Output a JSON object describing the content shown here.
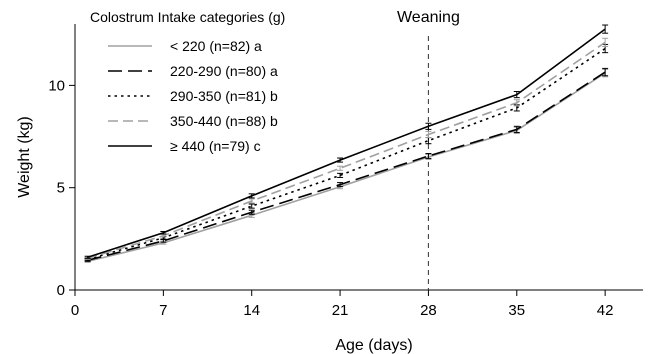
{
  "chart_data": {
    "type": "line",
    "title": "",
    "xlabel": "Age (days)",
    "ylabel": "Weight (kg)",
    "xlim": [
      0,
      45
    ],
    "ylim": [
      0,
      13
    ],
    "xticks": [
      0,
      7,
      14,
      21,
      28,
      35,
      42
    ],
    "yticks": [
      0,
      5,
      10
    ],
    "x": [
      1,
      7,
      14,
      21,
      28,
      35,
      42
    ],
    "grid": false,
    "legend": {
      "title": "Colostrum Intake categories (g)",
      "placement": "top-left"
    },
    "annotation": {
      "text": "Weaning",
      "x": 28
    },
    "series": [
      {
        "name": "< 220 (n=82) a",
        "color": "#a0a0a0",
        "dash": "solid",
        "values": [
          1.4,
          2.3,
          3.65,
          5.05,
          6.5,
          7.8,
          10.6
        ],
        "errors": [
          0.05,
          0.06,
          0.1,
          0.1,
          0.12,
          0.15,
          0.18
        ]
      },
      {
        "name": "220-290 (n=80) a",
        "color": "#000000",
        "dash": "long-dash",
        "values": [
          1.45,
          2.4,
          3.8,
          5.15,
          6.55,
          7.85,
          10.65
        ],
        "errors": [
          0.05,
          0.06,
          0.1,
          0.1,
          0.12,
          0.15,
          0.18
        ]
      },
      {
        "name": "290-350 (n=81) b",
        "color": "#000000",
        "dash": "dotted",
        "values": [
          1.5,
          2.55,
          4.1,
          5.6,
          7.3,
          8.9,
          11.8
        ],
        "errors": [
          0.05,
          0.06,
          0.1,
          0.1,
          0.15,
          0.15,
          0.2
        ]
      },
      {
        "name": "350-440 (n=88) b",
        "color": "#a0a0a0",
        "dash": "dashed",
        "values": [
          1.55,
          2.65,
          4.35,
          5.95,
          7.6,
          9.15,
          12.1
        ],
        "errors": [
          0.05,
          0.06,
          0.1,
          0.1,
          0.15,
          0.15,
          0.2
        ]
      },
      {
        "name": "≥ 440 (n=79) c",
        "color": "#000000",
        "dash": "solid",
        "values": [
          1.6,
          2.8,
          4.6,
          6.35,
          8.0,
          9.55,
          12.75
        ],
        "errors": [
          0.05,
          0.06,
          0.1,
          0.1,
          0.15,
          0.15,
          0.2
        ]
      }
    ]
  }
}
